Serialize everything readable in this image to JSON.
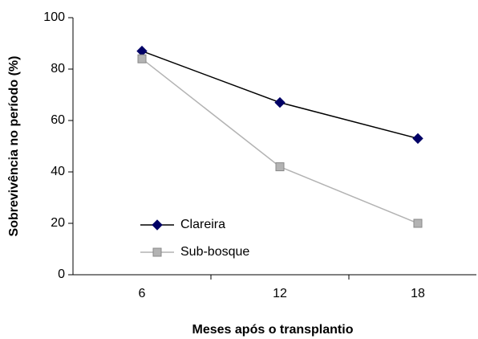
{
  "chart_data": {
    "type": "line",
    "x_label": "Meses após o transplantio",
    "y_label": "Sobrevivência no período (%)",
    "categories": [
      "6",
      "12",
      "18"
    ],
    "series": [
      {
        "name": "Clareira",
        "color": "#000066",
        "line_color": "#000000",
        "marker": "diamond",
        "values": [
          87,
          67,
          53
        ]
      },
      {
        "name": "Sub-bosque",
        "color": "#b3b3b3",
        "line_color": "#b3b3b3",
        "marker": "square",
        "values": [
          84,
          42,
          20
        ]
      }
    ],
    "ylim": [
      0,
      100
    ],
    "yticks": [
      0,
      20,
      40,
      60,
      80,
      100
    ],
    "grid": false,
    "legend": "lower left"
  }
}
